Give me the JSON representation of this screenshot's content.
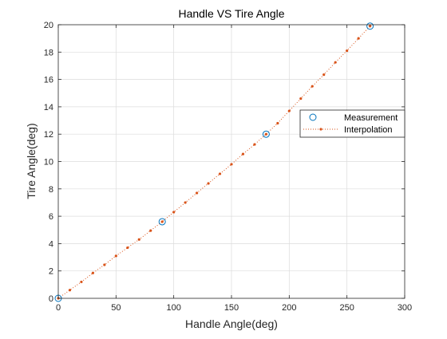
{
  "chart_data": {
    "type": "line",
    "title": "Handle VS Tire Angle",
    "xlabel": "Handle Angle(deg)",
    "ylabel": "Tire Angle(deg)",
    "xlim": [
      0,
      300
    ],
    "ylim": [
      0,
      20
    ],
    "xticks": [
      0,
      50,
      100,
      150,
      200,
      250,
      300
    ],
    "yticks": [
      0,
      2,
      4,
      6,
      8,
      10,
      12,
      14,
      16,
      18,
      20
    ],
    "grid": true,
    "legend_position": "right",
    "series": [
      {
        "name": "Measurement",
        "style": "markers-circle",
        "color": "#0072BD",
        "x": [
          0,
          90,
          180,
          270
        ],
        "y": [
          0,
          5.6,
          12.0,
          19.9
        ]
      },
      {
        "name": "Interpolation",
        "style": "dotted-line-with-dot-markers",
        "color": "#D95319",
        "x": [
          0,
          10,
          20,
          30,
          40,
          50,
          60,
          70,
          80,
          90,
          100,
          110,
          120,
          130,
          140,
          150,
          160,
          170,
          180,
          190,
          200,
          210,
          220,
          230,
          240,
          250,
          260,
          270
        ],
        "y": [
          0,
          0.6,
          1.2,
          1.85,
          2.45,
          3.1,
          3.7,
          4.3,
          4.95,
          5.6,
          6.3,
          7.0,
          7.7,
          8.4,
          9.1,
          9.8,
          10.55,
          11.25,
          12.0,
          12.8,
          13.7,
          14.6,
          15.5,
          16.35,
          17.25,
          18.1,
          19.0,
          19.9
        ]
      }
    ]
  }
}
